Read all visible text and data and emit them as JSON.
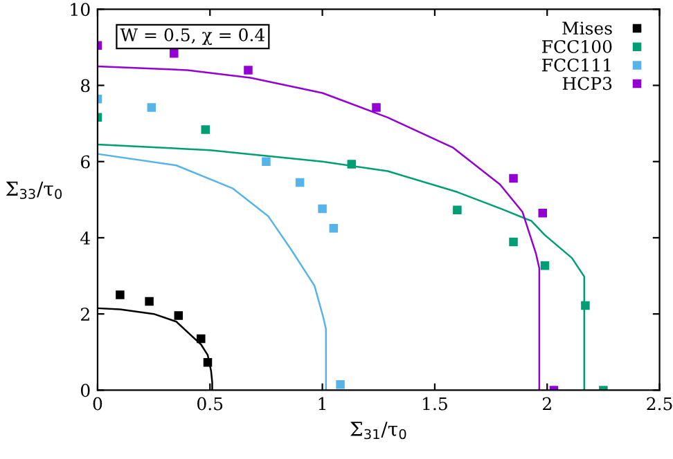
{
  "chart_data": {
    "type": "scatter",
    "xlabel": "Σ$_{31}$/τ$_{0}$",
    "ylabel": "Σ$_{33}$/τ$_{0}$",
    "annotations": [
      "W = 0.5, χ = 0.4"
    ],
    "xlim": [
      0,
      2.5
    ],
    "ylim": [
      0,
      10
    ],
    "xticks": [
      0,
      0.5,
      1,
      1.5,
      2,
      2.5
    ],
    "yticks": [
      0,
      2,
      4,
      6,
      8,
      10
    ],
    "grid": false,
    "legend": "top right",
    "marker": "square",
    "series": [
      {
        "name": "Mises",
        "color": "#000000",
        "x": [
          0.1,
          0.23,
          0.36,
          0.46,
          0.49
        ],
        "values": [
          2.5,
          2.33,
          1.96,
          1.35,
          0.73
        ]
      },
      {
        "name": "FCC100",
        "color": "#009e73",
        "x": [
          0,
          0.48,
          1.13,
          1.6,
          1.85,
          1.99,
          2.17,
          2.25
        ],
        "values": [
          7.16,
          6.84,
          5.93,
          4.73,
          3.89,
          3.27,
          2.22,
          0
        ]
      },
      {
        "name": "FCC111",
        "color": "#56b4e9",
        "x": [
          0,
          0.24,
          0.75,
          0.9,
          1.0,
          1.05,
          1.08
        ],
        "values": [
          7.64,
          7.42,
          6.0,
          5.45,
          4.76,
          4.25,
          0.15
        ]
      },
      {
        "name": "HCP3",
        "color": "#9400d3",
        "x": [
          0,
          0.34,
          0.67,
          1.24,
          1.85,
          1.98,
          2.03
        ],
        "values": [
          9.05,
          8.84,
          8.4,
          7.42,
          5.56,
          4.65,
          0
        ]
      },
      {
        "type": "line",
        "color": "#000000",
        "marker": "none",
        "x": [
          0,
          0.1,
          0.25,
          0.35,
          0.41,
          0.46,
          0.49,
          0.505,
          0.51,
          0.51
        ],
        "values": [
          2.15,
          2.12,
          2.0,
          1.8,
          1.47,
          1.2,
          0.92,
          0.5,
          0.2,
          0
        ]
      },
      {
        "type": "line",
        "color": "#009e73",
        "marker": "none",
        "x": [
          0,
          0.5,
          1.0,
          1.29,
          1.6,
          1.8,
          1.93,
          1.99,
          2.11,
          2.165,
          2.165
        ],
        "values": [
          6.45,
          6.3,
          6.0,
          5.75,
          5.2,
          4.75,
          4.44,
          4.07,
          3.47,
          2.98,
          0
        ]
      },
      {
        "type": "line",
        "color": "#56b4e9",
        "marker": "none",
        "x": [
          0,
          0.35,
          0.6,
          0.76,
          0.86,
          0.965,
          1.005,
          1.016,
          1.016
        ],
        "values": [
          6.2,
          5.9,
          5.3,
          4.56,
          3.7,
          2.74,
          1.89,
          1.6,
          0
        ]
      },
      {
        "type": "line",
        "color": "#9400d3",
        "marker": "none",
        "x": [
          0,
          0.4,
          0.68,
          1.0,
          1.29,
          1.58,
          1.79,
          1.89,
          1.95,
          1.965,
          1.965
        ],
        "values": [
          8.5,
          8.4,
          8.2,
          7.8,
          7.16,
          6.37,
          5.4,
          4.68,
          3.59,
          3.2,
          0
        ]
      }
    ]
  }
}
